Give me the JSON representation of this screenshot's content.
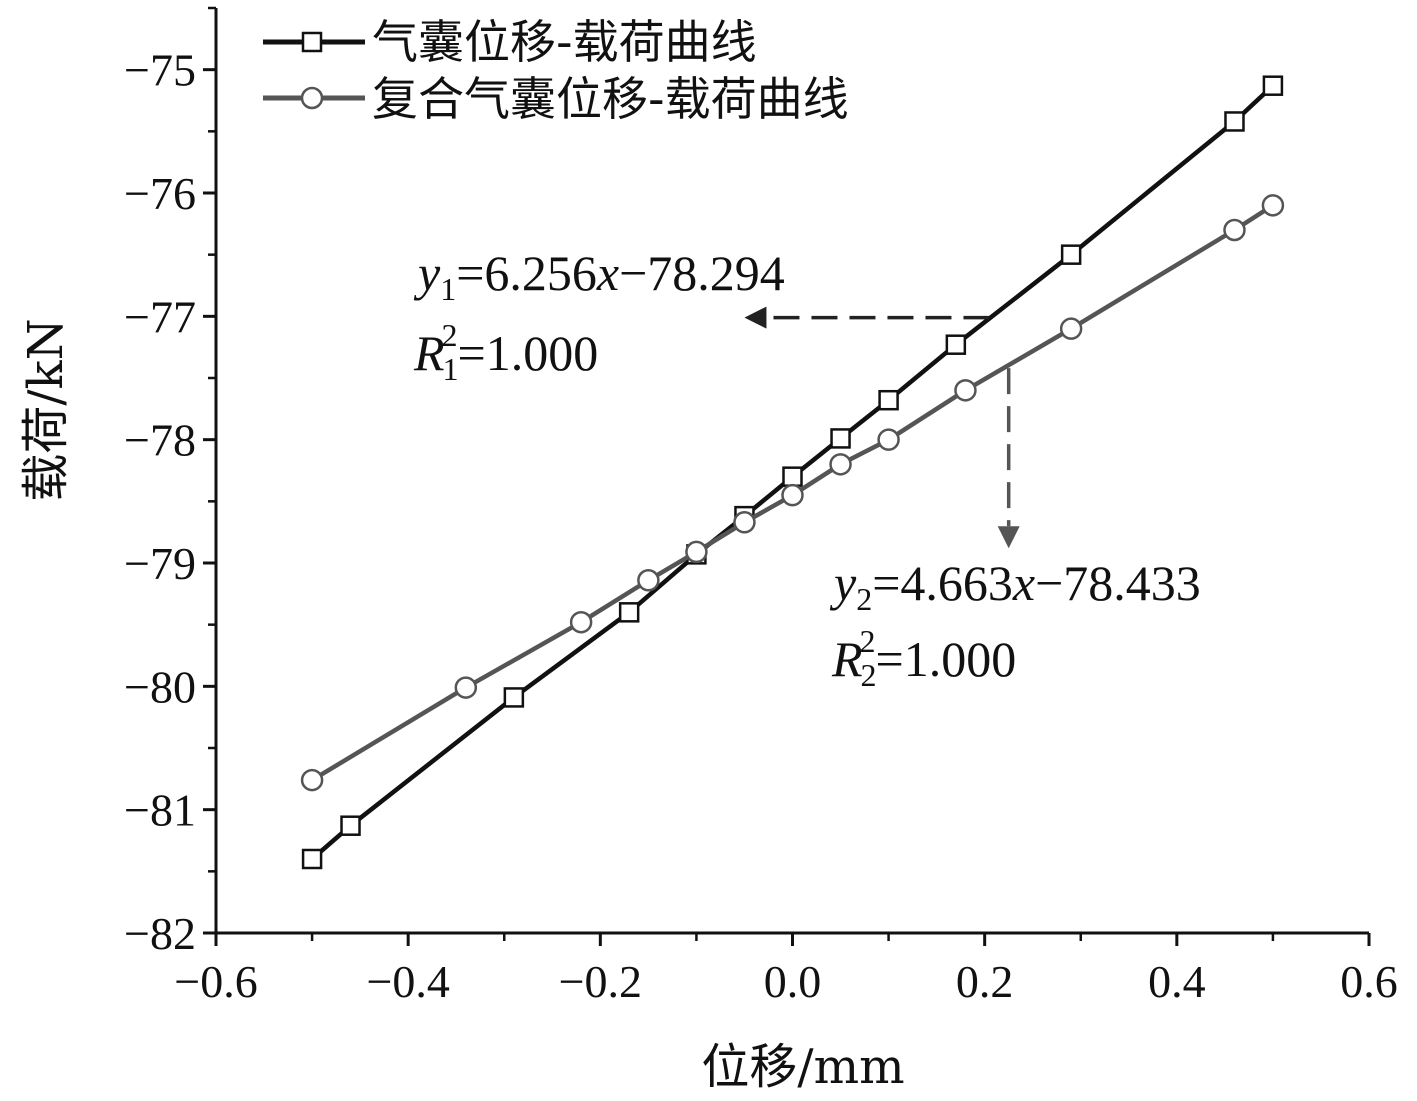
{
  "chart_data": {
    "type": "line",
    "title": "",
    "xlabel": "位移/mm",
    "ylabel": "载荷/kN",
    "xlim": [
      -0.6,
      0.6
    ],
    "ylim": [
      -82,
      -74.5
    ],
    "xticks": [
      -0.6,
      -0.4,
      -0.2,
      0.0,
      0.2,
      0.4,
      0.6
    ],
    "xtick_labels": [
      "−0.6",
      "−0.4",
      "−0.2",
      "0.0",
      "0.2",
      "0.4",
      "0.6"
    ],
    "yticks": [
      -82,
      -81,
      -80,
      -79,
      -78,
      -77,
      -76,
      -75
    ],
    "ytick_labels": [
      "−82",
      "−81",
      "−80",
      "−79",
      "−78",
      "−77",
      "−76",
      "−75"
    ],
    "grid": false,
    "legend_position": "top-left",
    "series": [
      {
        "name": "气囊位移-载荷曲线",
        "marker": "square",
        "color": "#111111",
        "x": [
          -0.5,
          -0.46,
          -0.29,
          -0.17,
          -0.1,
          -0.05,
          0.0,
          0.05,
          0.1,
          0.17,
          0.29,
          0.46,
          0.5
        ],
        "y": [
          -81.4,
          -81.13,
          -80.09,
          -79.4,
          -78.93,
          -78.62,
          -78.3,
          -77.99,
          -77.68,
          -77.23,
          -76.5,
          -75.42,
          -75.13
        ]
      },
      {
        "name": "复合气囊位移-载荷曲线",
        "marker": "circle",
        "color": "#555555",
        "x": [
          -0.5,
          -0.34,
          -0.22,
          -0.15,
          -0.1,
          -0.05,
          0.0,
          0.05,
          0.1,
          0.18,
          0.29,
          0.46,
          0.5
        ],
        "y": [
          -80.76,
          -80.01,
          -79.48,
          -79.14,
          -78.91,
          -78.67,
          -78.45,
          -78.2,
          -78.0,
          -77.6,
          -77.1,
          -76.3,
          -76.1
        ]
      }
    ],
    "annotations": [
      {
        "equation": {
          "var": "y",
          "sub": "1",
          "rhs_a": "=6.256",
          "rhs_var": "x",
          "rhs_b": "−78.294"
        },
        "r2": {
          "var": "R",
          "sub": "1",
          "sup": "2",
          "rhs": "=1.000"
        },
        "arrow_from": [
          0.205,
          -77.01
        ],
        "arrow_to": [
          -0.05,
          -77.01
        ]
      },
      {
        "equation": {
          "var": "y",
          "sub": "2",
          "rhs_a": "=4.663",
          "rhs_var": "x",
          "rhs_b": "−78.433"
        },
        "r2": {
          "var": "R",
          "sub": "2",
          "sup": "2",
          "rhs": "=1.000"
        },
        "arrow_from": [
          0.225,
          -77.42
        ],
        "arrow_to": [
          0.225,
          -78.88
        ]
      }
    ]
  }
}
